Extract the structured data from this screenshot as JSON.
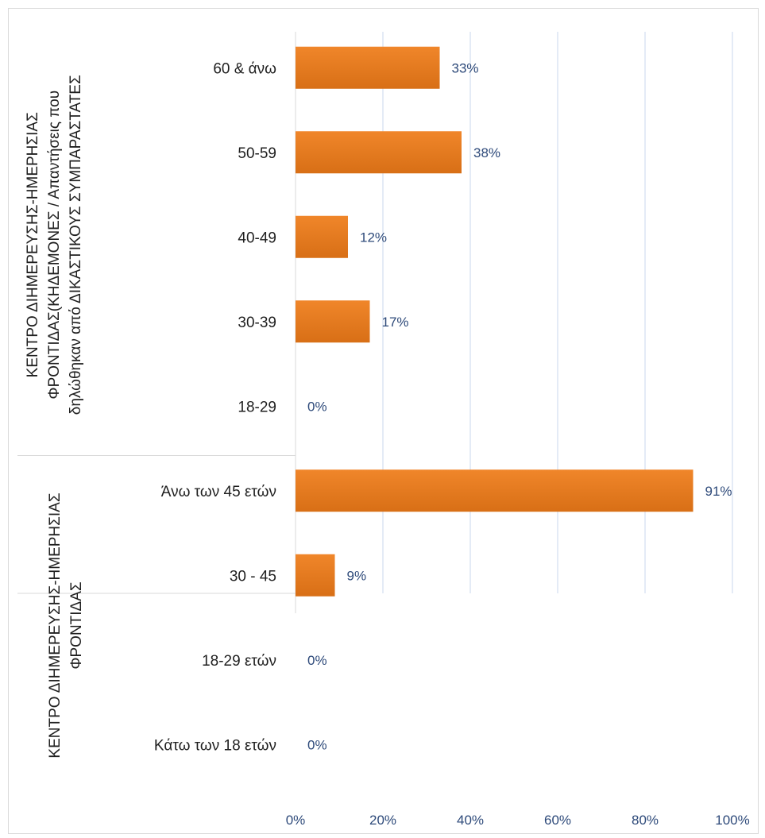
{
  "chart_data": {
    "type": "bar",
    "orientation": "horizontal",
    "xlim": [
      0,
      100
    ],
    "x_ticks": [
      "0%",
      "20%",
      "40%",
      "60%",
      "80%",
      "100%"
    ],
    "grid": true,
    "bar_color": "#f0862a",
    "bar_color_dark": "#d86f16",
    "label_color": "#2e4a7a",
    "gridline_color": "#c9d7ec",
    "groups": [
      {
        "name_lines": [
          "ΚΕΝΤΡΟ ΔΙΗΜΕΡΕΥΣΗΣ-ΗΜΕΡΗΣΙΑΣ",
          "ΦΡΟΝΤΙΔΑΣ(ΚΗΔΕΜΟΝΕΣ / Απαντήσεις που",
          "δηλώθηκαν από ΔΙΚΑΣΤΙΚΟΥΣ ΣΥΜΠΑΡΑΣΤΑΤΕΣ"
        ],
        "categories": [
          "60 & άνω",
          "50-59",
          "40-49",
          "30-39",
          "18-29"
        ],
        "values": [
          33,
          38,
          12,
          17,
          0
        ],
        "labels": [
          "33%",
          "38%",
          "12%",
          "17%",
          "0%"
        ]
      },
      {
        "name_lines": [
          "ΚΕΝΤΡΟ ΔΙΗΜΕΡΕΥΣΗΣ-ΗΜΕΡΗΣΙΑΣ",
          "ΦΡΟΝΤΙΔΑΣ"
        ],
        "categories": [
          "Άνω των 45 ετών",
          "30 - 45",
          "18-29 ετών",
          "Κάτω των 18 ετών"
        ],
        "values": [
          91,
          9,
          0,
          0
        ],
        "labels": [
          "91%",
          "9%",
          "0%",
          "0%"
        ]
      }
    ]
  }
}
